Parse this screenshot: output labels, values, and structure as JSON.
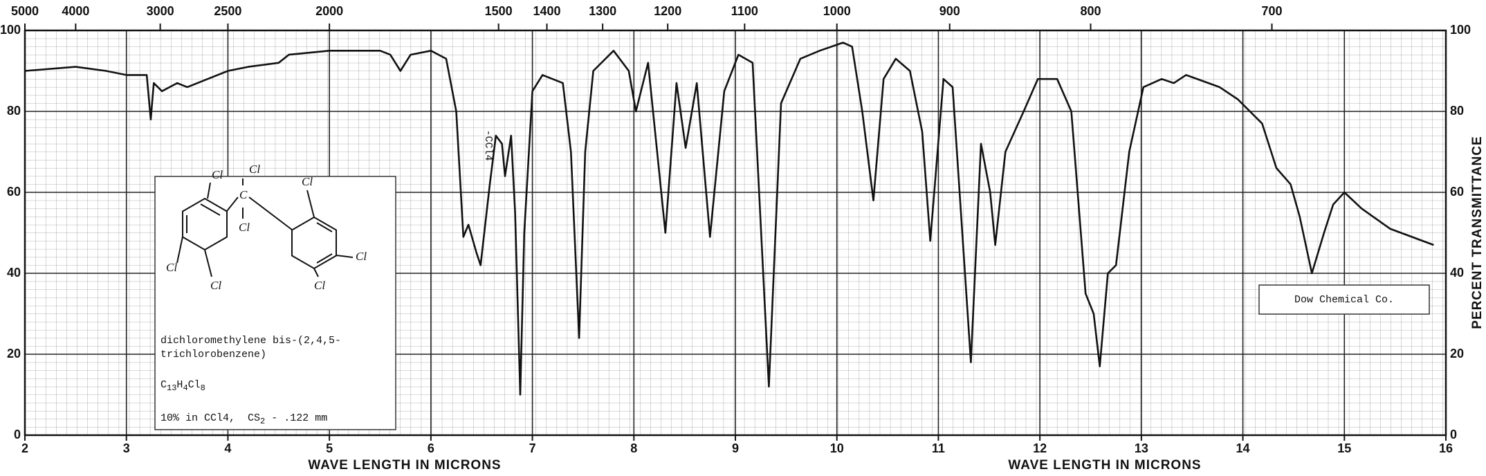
{
  "chart_data": {
    "type": "line",
    "xlabel": "WAVE LENGTH IN MICRONS",
    "ylabel": "PERCENT TRANSMITTANCE",
    "xlim": [
      2,
      16
    ],
    "xticks": [
      2,
      3,
      4,
      5,
      6,
      7,
      8,
      9,
      10,
      11,
      12,
      13,
      14,
      15,
      16
    ],
    "x2ticks": [
      5000,
      4000,
      3000,
      2500,
      2000,
      1500,
      1400,
      1300,
      1200,
      1100,
      1000,
      900,
      800,
      700
    ],
    "x2_scale": "reciprocal",
    "ylim": [
      0,
      100
    ],
    "yticks": [
      0,
      20,
      40,
      60,
      80,
      100
    ],
    "grid": true,
    "color": "#111111",
    "x": [
      2.0,
      2.5,
      2.8,
      3.0,
      3.2,
      3.24,
      3.27,
      3.35,
      3.5,
      3.6,
      3.8,
      4.0,
      4.2,
      4.5,
      4.6,
      5.0,
      5.5,
      5.6,
      5.7,
      5.8,
      6.0,
      6.15,
      6.25,
      6.32,
      6.37,
      6.45,
      6.49,
      6.58,
      6.64,
      6.7,
      6.73,
      6.79,
      6.83,
      6.88,
      6.92,
      7.0,
      7.1,
      7.3,
      7.38,
      7.46,
      7.52,
      7.6,
      7.8,
      7.95,
      8.02,
      8.14,
      8.31,
      8.42,
      8.51,
      8.62,
      8.75,
      8.89,
      9.03,
      9.17,
      9.33,
      9.45,
      9.64,
      9.83,
      10.06,
      10.15,
      10.25,
      10.36,
      10.46,
      10.58,
      10.72,
      10.84,
      10.92,
      11.05,
      11.14,
      11.32,
      11.42,
      11.51,
      11.56,
      11.66,
      11.84,
      11.98,
      12.17,
      12.31,
      12.45,
      12.53,
      12.59,
      12.67,
      12.75,
      12.88,
      13.02,
      13.2,
      13.32,
      13.44,
      13.77,
      13.95,
      14.19,
      14.33,
      14.47,
      14.56,
      14.68,
      14.8,
      14.89,
      15.0,
      15.17,
      15.45,
      15.88
    ],
    "series": [
      {
        "name": "dichloromethylene bis-(2,4,5-trichlorobenzene)",
        "color": "#111111",
        "values": [
          90,
          91,
          90,
          89,
          89,
          78,
          87,
          85,
          87,
          86,
          88,
          90,
          91,
          92,
          94,
          95,
          95,
          94,
          90,
          94,
          95,
          93,
          80,
          49,
          52,
          45,
          42,
          62,
          74,
          72,
          64,
          74,
          55,
          10,
          50,
          85,
          89,
          87,
          70,
          24,
          70,
          90,
          95,
          90,
          80,
          92,
          50,
          87,
          71,
          87,
          49,
          85,
          94,
          92,
          12,
          82,
          93,
          95,
          97,
          96,
          80,
          58,
          88,
          93,
          90,
          75,
          48,
          88,
          86,
          18,
          72,
          60,
          47,
          70,
          80,
          88,
          88,
          80,
          35,
          30,
          17,
          40,
          42,
          70,
          86,
          88,
          87,
          89,
          86,
          83,
          77,
          66,
          62,
          54,
          40,
          50,
          57,
          60,
          56,
          51,
          47
        ]
      }
    ],
    "annotations": {
      "band_label": "-CCl4",
      "compound_name": [
        "dichloromethylene bis-(2,4,5-",
        "trichlorobenzene)"
      ],
      "formula": [
        "C",
        "13",
        "H",
        "4",
        "Cl",
        "8"
      ],
      "conditions": [
        "10% in CCl4,  CS",
        "2",
        " - .122 mm"
      ],
      "structure_atoms": [
        "Cl",
        "Cl",
        "Cl",
        "Cl",
        "Cl",
        "C",
        "Cl",
        "Cl",
        "Cl"
      ],
      "credit": "Dow Chemical Co."
    }
  }
}
